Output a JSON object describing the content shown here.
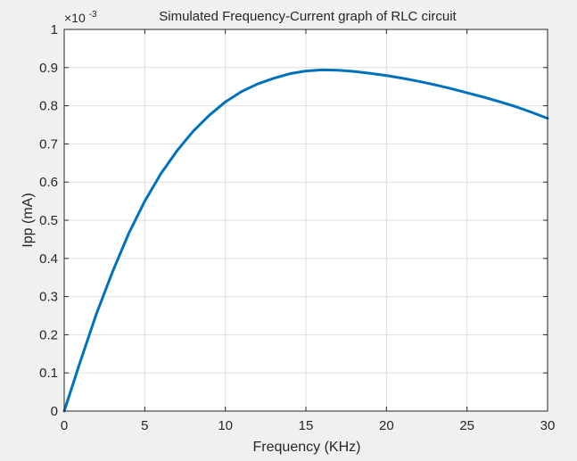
{
  "chart_data": {
    "type": "line",
    "title": "Simulated Frequency-Current graph of RLC circuit",
    "xlabel": "Frequency (KHz)",
    "ylabel": "Ipp (mA)",
    "y_exponent_base": "×10",
    "y_exponent_power": "-3",
    "xlim": [
      0,
      30
    ],
    "ylim": [
      0,
      1
    ],
    "x_ticks": [
      0,
      5,
      10,
      15,
      20,
      25,
      30
    ],
    "y_ticks": [
      0,
      0.1,
      0.2,
      0.3,
      0.4,
      0.5,
      0.6,
      0.7,
      0.8,
      0.9,
      1
    ],
    "grid": true,
    "line_color": "#0072bd",
    "series": [
      {
        "x": [
          0,
          1,
          2,
          3,
          4,
          5,
          6,
          7,
          8,
          9,
          10,
          11,
          12,
          13,
          14,
          15,
          16,
          17,
          18,
          19,
          20,
          21,
          22,
          23,
          24,
          25,
          26,
          27,
          28,
          29,
          30
        ],
        "values": [
          0.0,
          0.13,
          0.255,
          0.365,
          0.465,
          0.55,
          0.622,
          0.682,
          0.733,
          0.775,
          0.81,
          0.837,
          0.857,
          0.872,
          0.884,
          0.891,
          0.894,
          0.893,
          0.89,
          0.885,
          0.879,
          0.872,
          0.864,
          0.855,
          0.845,
          0.834,
          0.823,
          0.811,
          0.798,
          0.783,
          0.767
        ]
      }
    ]
  }
}
